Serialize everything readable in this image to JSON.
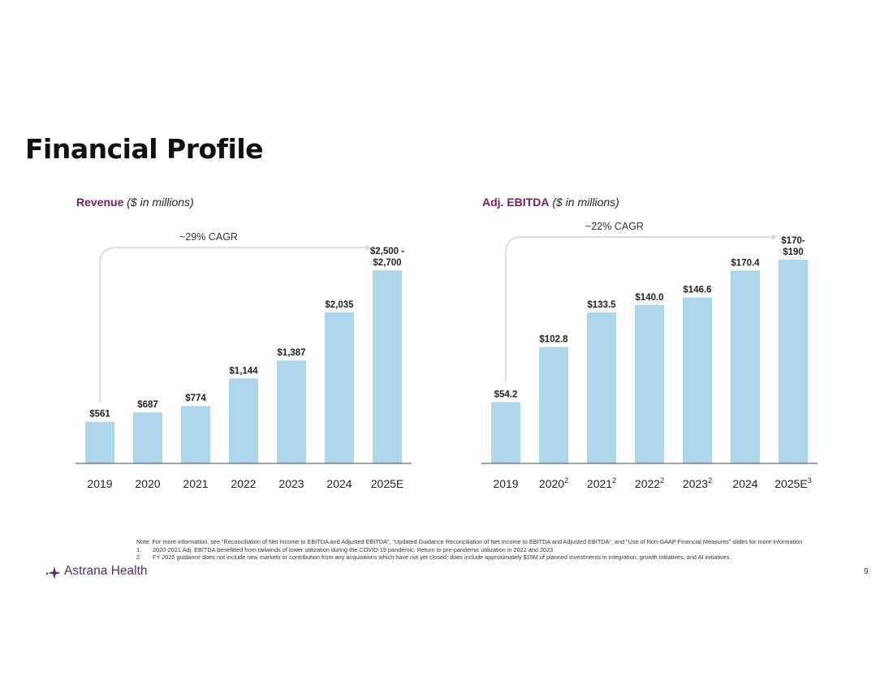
{
  "page": {
    "title": "Financial Profile",
    "logo_text": "Astrana Health",
    "page_number": "9",
    "note": "Note: For more information, see “Reconciliation of Net Income to EBITDA and Adjusted EBITDA”, “Updated Guidance Reconciliation of Net Income to EBITDA and Adjusted EBITDA”, and “Use of Non-GAAP Financial Measures” slides for more information",
    "footnotes": [
      {
        "num": "1.",
        "text": "2020-2021 Adj. EBITDA benefitted from tailwinds of lower utilization during the COVID-19 pandemic.  Return to pre-pandemic utilization in 2022 and 2023"
      },
      {
        "num": "2.",
        "text": "FY 2025 guidance does not include new markets or contribution from any acquisitions which have not yet closed; does include approximately $15M of planned investments in integration, growth initiatives, and AI initiatives."
      }
    ]
  },
  "colors": {
    "bar": "#aed6ea",
    "heading_accent": "#7a1f5c",
    "logo": "#5a2a6e",
    "cagr_arrow": "#dcdcdc"
  },
  "chart_data": [
    {
      "type": "bar",
      "title": "Revenue",
      "subtitle": "($ in millions)",
      "categories": [
        "2019",
        "2020",
        "2021",
        "2022",
        "2023",
        "2024",
        "2025E"
      ],
      "category_superscripts": [
        "",
        "",
        "",
        "",
        "",
        "",
        ""
      ],
      "values": [
        561,
        687,
        774,
        1144,
        1387,
        2035,
        2600
      ],
      "value_labels": [
        [
          "$561"
        ],
        [
          "$687"
        ],
        [
          "$774"
        ],
        [
          "$1,144"
        ],
        [
          "$1,387"
        ],
        [
          "$2,035"
        ],
        [
          "$2,500 -",
          "$2,700"
        ]
      ],
      "range_2025E": [
        2500,
        2700
      ],
      "annotation": "~29% CAGR",
      "ylim": [
        0,
        2700
      ],
      "grid": false,
      "legend": "none"
    },
    {
      "type": "bar",
      "title": "Adj. EBITDA",
      "subtitle": "($ in millions)",
      "categories": [
        "2019",
        "2020",
        "2021",
        "2022",
        "2023",
        "2024",
        "2025E"
      ],
      "category_superscripts": [
        "",
        "2",
        "2",
        "2",
        "2",
        "",
        "3"
      ],
      "values": [
        54.2,
        102.8,
        133.5,
        140.0,
        146.6,
        170.4,
        180
      ],
      "value_labels": [
        [
          "$54.2"
        ],
        [
          "$102.8"
        ],
        [
          "$133.5"
        ],
        [
          "$140.0"
        ],
        [
          "$146.6"
        ],
        [
          "$170.4"
        ],
        [
          "$170-",
          "$190"
        ]
      ],
      "range_2025E": [
        170,
        190
      ],
      "annotation": "~22% CAGR",
      "ylim": [
        0,
        180
      ],
      "grid": false,
      "legend": "none"
    }
  ]
}
